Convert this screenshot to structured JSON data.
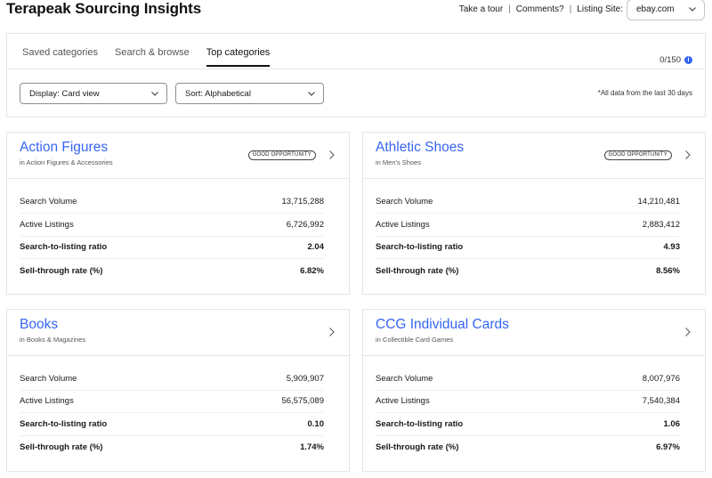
{
  "header": {
    "title": "Terapeak Sourcing Insights",
    "links": [
      "Take a tour",
      "Comments?"
    ],
    "listing_site_label": "Listing Site:",
    "listing_site_value": "ebay.com"
  },
  "tabs": [
    {
      "label": "Saved categories"
    },
    {
      "label": "Search & browse"
    },
    {
      "label": "Top categories",
      "active": true
    }
  ],
  "saved_count": "0/150",
  "controls": {
    "display": "Display: Card view",
    "sort": "Sort: Alphabetical"
  },
  "data_note": "*All data from the last 30 days",
  "metric_labels": {
    "search_volume": "Search Volume",
    "active_listings": "Active Listings",
    "ratio": "Search-to-listing ratio",
    "sell_through": "Sell-through rate (%)"
  },
  "cards": [
    {
      "title": "Action Figures",
      "subtitle": "in Action Figures & Accessories",
      "badge": "GOOD OPPORTUNITY",
      "search_volume": "13,715,288",
      "active_listings": "6,726,992",
      "ratio": "2.04",
      "sell_through": "6.82%"
    },
    {
      "title": "Athletic Shoes",
      "subtitle": "in Men's Shoes",
      "badge": "GOOD OPPORTUNITY",
      "search_volume": "14,210,481",
      "active_listings": "2,883,412",
      "ratio": "4.93",
      "sell_through": "8.56%"
    },
    {
      "title": "Books",
      "subtitle": "in Books & Magazines",
      "badge": "",
      "search_volume": "5,909,907",
      "active_listings": "56,575,089",
      "ratio": "0.10",
      "sell_through": "1.74%"
    },
    {
      "title": "CCG Individual Cards",
      "subtitle": "in Collectible Card Games",
      "badge": "",
      "search_volume": "8,007,976",
      "active_listings": "7,540,384",
      "ratio": "1.06",
      "sell_through": "6.97%"
    }
  ],
  "colors": {
    "accent": "#3665f3",
    "border": "#e5e5e5",
    "text": "#191919"
  },
  "icons": {
    "info": "info-icon",
    "chevron_down": "chevron-down-icon",
    "chevron_right": "chevron-right-icon"
  }
}
